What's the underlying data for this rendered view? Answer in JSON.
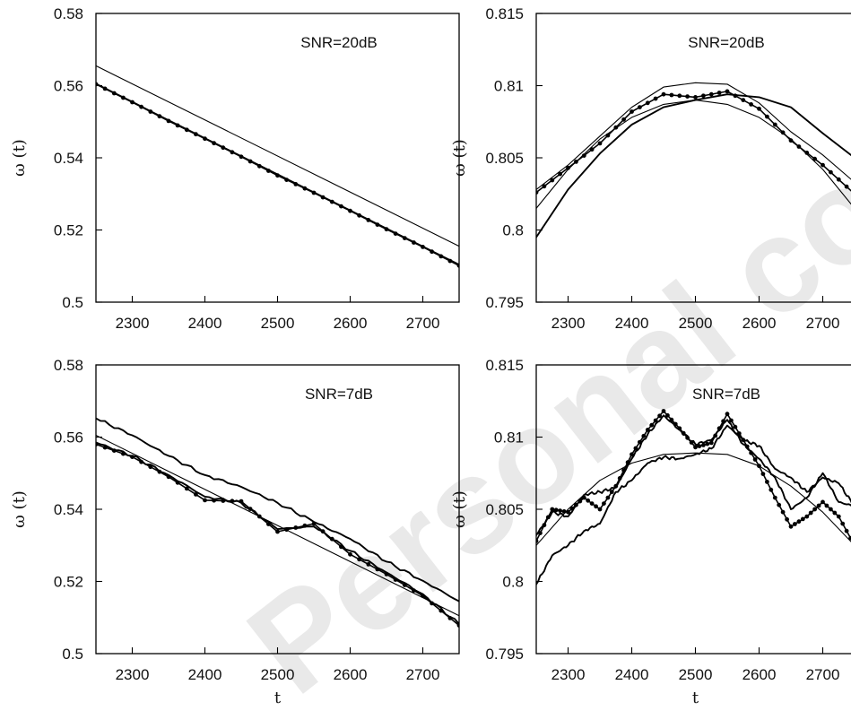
{
  "watermark": "Personal copy",
  "chart_data": [
    {
      "type": "line",
      "annotation": "SNR=20dB",
      "xlabel": "",
      "ylabel": "ω (t)",
      "xlim": [
        2250,
        2750
      ],
      "ylim": [
        0.5,
        0.58
      ],
      "xticks": [
        2300,
        2400,
        2500,
        2600,
        2700
      ],
      "yticks": [
        0.5,
        0.52,
        0.54,
        0.56,
        0.58
      ],
      "ytick_labels": [
        "0.5",
        "0.52",
        "0.54",
        "0.56",
        "0.58"
      ],
      "series": [
        {
          "style": "thin",
          "x": [
            2250,
            2750
          ],
          "y": [
            0.5655,
            0.5155
          ]
        },
        {
          "style": "thin",
          "x": [
            2250,
            2750
          ],
          "y": [
            0.5605,
            0.5105
          ]
        },
        {
          "style": "thick",
          "x": [
            2250,
            2300,
            2350,
            2400,
            2450,
            2500,
            2550,
            2600,
            2650,
            2700,
            2750
          ],
          "y": [
            0.5605,
            0.5555,
            0.5503,
            0.5454,
            0.5404,
            0.5352,
            0.5304,
            0.5254,
            0.5203,
            0.5154,
            0.5102
          ]
        },
        {
          "style": "dotted",
          "x": [
            2250,
            2300,
            2350,
            2400,
            2450,
            2500,
            2550,
            2600,
            2650,
            2700,
            2750
          ],
          "y": [
            0.5604,
            0.5554,
            0.5502,
            0.5453,
            0.5403,
            0.5351,
            0.5303,
            0.5253,
            0.5202,
            0.5153,
            0.5101
          ]
        }
      ]
    },
    {
      "type": "line",
      "annotation": "SNR=20dB",
      "xlabel": "",
      "ylabel": "ω (t)",
      "xlim": [
        2250,
        2750
      ],
      "ylim": [
        0.795,
        0.815
      ],
      "xticks": [
        2300,
        2400,
        2500,
        2600,
        2700
      ],
      "yticks": [
        0.795,
        0.8,
        0.805,
        0.81,
        0.815
      ],
      "ytick_labels": [
        "0.795",
        "0.8",
        "0.805",
        "0.81",
        "0.815"
      ],
      "series": [
        {
          "style": "thin",
          "x": [
            2250,
            2300,
            2350,
            2400,
            2450,
            2500,
            2550,
            2600,
            2650,
            2700,
            2750
          ],
          "y": [
            0.8015,
            0.8042,
            0.8063,
            0.8078,
            0.8087,
            0.809,
            0.8087,
            0.8078,
            0.8063,
            0.8042,
            0.8015
          ]
        },
        {
          "style": "thin",
          "x": [
            2250,
            2300,
            2350,
            2400,
            2450,
            2500,
            2550,
            2600,
            2650,
            2700,
            2750
          ],
          "y": [
            0.8028,
            0.8045,
            0.8065,
            0.8085,
            0.8099,
            0.8102,
            0.8101,
            0.8088,
            0.8068,
            0.8052,
            0.8033
          ]
        },
        {
          "style": "thick",
          "x": [
            2250,
            2300,
            2350,
            2400,
            2450,
            2500,
            2550,
            2600,
            2650,
            2700,
            2750
          ],
          "y": [
            0.7995,
            0.8028,
            0.8053,
            0.8073,
            0.8085,
            0.809,
            0.8094,
            0.8092,
            0.8085,
            0.8067,
            0.805
          ]
        },
        {
          "style": "dotted",
          "x": [
            2250,
            2300,
            2350,
            2400,
            2450,
            2500,
            2550,
            2600,
            2650,
            2700,
            2750
          ],
          "y": [
            0.8026,
            0.8043,
            0.806,
            0.8082,
            0.8094,
            0.8092,
            0.8096,
            0.8084,
            0.8062,
            0.8045,
            0.8025
          ]
        }
      ]
    },
    {
      "type": "line",
      "annotation": "SNR=7dB",
      "xlabel": "t",
      "ylabel": "ω (t)",
      "xlim": [
        2250,
        2750
      ],
      "ylim": [
        0.5,
        0.58
      ],
      "xticks": [
        2300,
        2400,
        2500,
        2600,
        2700
      ],
      "yticks": [
        0.5,
        0.52,
        0.54,
        0.56,
        0.58
      ],
      "ytick_labels": [
        "0.5",
        "0.52",
        "0.54",
        "0.56",
        "0.58"
      ],
      "series": [
        {
          "style": "thin",
          "x": [
            2250,
            2750
          ],
          "y": [
            0.5605,
            0.5105
          ]
        },
        {
          "style": "thick",
          "x": [
            2250,
            2300,
            2350,
            2400,
            2450,
            2500,
            2550,
            2600,
            2650,
            2700,
            2750
          ],
          "y": [
            0.5652,
            0.5605,
            0.5548,
            0.5495,
            0.5462,
            0.5418,
            0.5365,
            0.5318,
            0.5255,
            0.5202,
            0.5145
          ]
        },
        {
          "style": "thick",
          "x": [
            2250,
            2300,
            2350,
            2400,
            2450,
            2500,
            2550,
            2600,
            2650,
            2700,
            2750
          ],
          "y": [
            0.5585,
            0.5548,
            0.5495,
            0.5435,
            0.5418,
            0.5345,
            0.5352,
            0.5285,
            0.5225,
            0.5165,
            0.5082
          ]
        },
        {
          "style": "dotted",
          "x": [
            2250,
            2300,
            2350,
            2400,
            2450,
            2500,
            2550,
            2600,
            2650,
            2700,
            2750
          ],
          "y": [
            0.558,
            0.5545,
            0.549,
            0.5425,
            0.5422,
            0.5338,
            0.536,
            0.5275,
            0.522,
            0.516,
            0.5078
          ]
        }
      ]
    },
    {
      "type": "line",
      "annotation": "SNR=7dB",
      "xlabel": "t",
      "ylabel": "ω (t)",
      "xlim": [
        2250,
        2750
      ],
      "ylim": [
        0.795,
        0.815
      ],
      "xticks": [
        2300,
        2400,
        2500,
        2600,
        2700
      ],
      "yticks": [
        0.795,
        0.8,
        0.805,
        0.81,
        0.815
      ],
      "ytick_labels": [
        "0.795",
        "0.8",
        "0.805",
        "0.81",
        "0.815"
      ],
      "series": [
        {
          "style": "thin",
          "x": [
            2250,
            2300,
            2350,
            2400,
            2450,
            2500,
            2550,
            2600,
            2650,
            2700,
            2750
          ],
          "y": [
            0.8025,
            0.805,
            0.807,
            0.8082,
            0.8088,
            0.8089,
            0.8088,
            0.808,
            0.8066,
            0.8048,
            0.8025
          ]
        },
        {
          "style": "thick",
          "x": [
            2250,
            2275,
            2300,
            2325,
            2350,
            2375,
            2400,
            2425,
            2450,
            2475,
            2500,
            2525,
            2550,
            2575,
            2600,
            2625,
            2650,
            2675,
            2700,
            2725,
            2750
          ],
          "y": [
            0.7998,
            0.8018,
            0.8025,
            0.8035,
            0.804,
            0.8062,
            0.807,
            0.8082,
            0.8086,
            0.8085,
            0.8088,
            0.8092,
            0.8108,
            0.8098,
            0.8094,
            0.8078,
            0.8072,
            0.8062,
            0.8072,
            0.8068,
            0.8052
          ]
        },
        {
          "style": "thick",
          "x": [
            2250,
            2275,
            2300,
            2325,
            2350,
            2375,
            2400,
            2425,
            2450,
            2475,
            2500,
            2525,
            2550,
            2575,
            2600,
            2625,
            2650,
            2675,
            2700,
            2725,
            2750
          ],
          "y": [
            0.8032,
            0.8048,
            0.8045,
            0.806,
            0.8062,
            0.8065,
            0.8085,
            0.8102,
            0.8115,
            0.8105,
            0.8095,
            0.8098,
            0.8112,
            0.8095,
            0.8085,
            0.8072,
            0.805,
            0.8058,
            0.8075,
            0.8055,
            0.8052
          ]
        },
        {
          "style": "dotted",
          "x": [
            2250,
            2275,
            2300,
            2325,
            2350,
            2375,
            2400,
            2425,
            2450,
            2475,
            2500,
            2525,
            2550,
            2575,
            2600,
            2625,
            2650,
            2675,
            2700,
            2725,
            2750
          ],
          "y": [
            0.8028,
            0.805,
            0.8048,
            0.8058,
            0.805,
            0.8066,
            0.8088,
            0.8105,
            0.8118,
            0.8106,
            0.8093,
            0.8096,
            0.8116,
            0.8098,
            0.808,
            0.8058,
            0.8038,
            0.8045,
            0.8055,
            0.8045,
            0.8025
          ]
        }
      ]
    }
  ]
}
